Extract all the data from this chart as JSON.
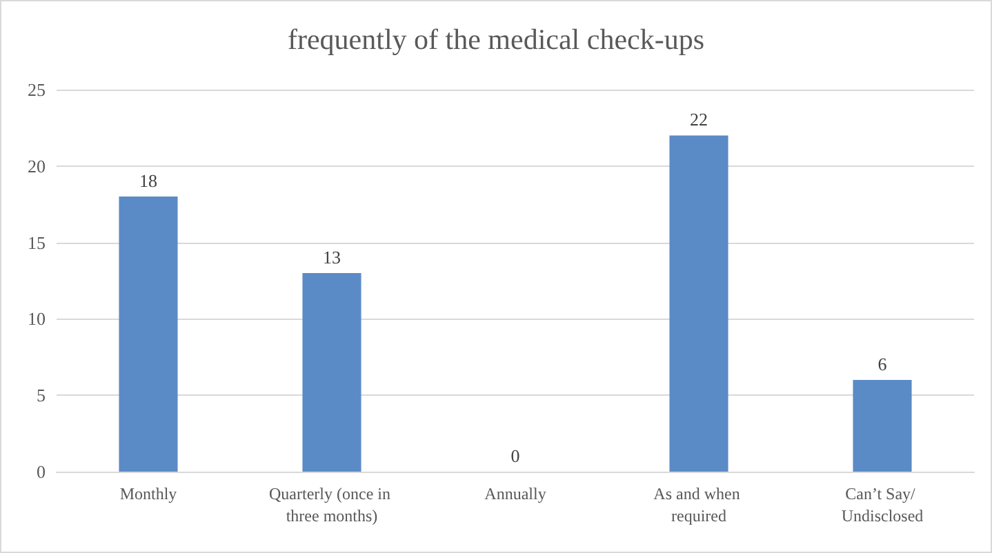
{
  "chart_data": {
    "type": "bar",
    "title": "frequently of the medical check-ups",
    "categories": [
      "Monthly",
      "Quarterly (once in three months)",
      "Annually",
      "As and when required",
      "Can’t Say/ Undisclosed"
    ],
    "values": [
      18,
      13,
      0,
      22,
      6
    ],
    "color": "#5b8bc6",
    "ylim": [
      0,
      25
    ],
    "yticks": [
      0,
      5,
      10,
      15,
      20,
      25
    ],
    "grid": "y",
    "data_labels": true
  }
}
